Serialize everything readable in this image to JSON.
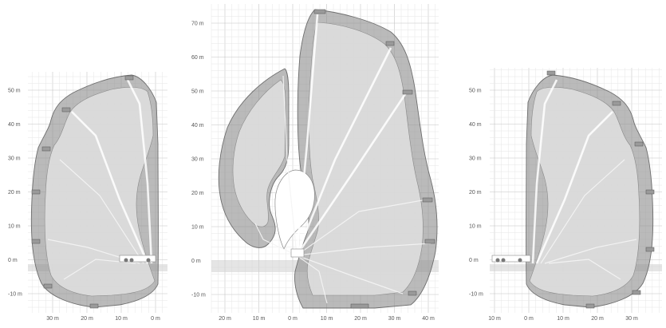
{
  "colors": {
    "outer_envelope": "#8f8f8f",
    "inner_envelope": "#dcdcdc",
    "grid": "#c4c4c4",
    "background": "#ffffff"
  },
  "panels": [
    {
      "id": "left",
      "y_ticks": [
        "50 m",
        "40 m",
        "30 m",
        "20 m",
        "10 m",
        "0 m",
        "-10 m"
      ],
      "x_ticks": [
        "30 m",
        "20 m",
        "10 m",
        "0 m"
      ]
    },
    {
      "id": "center",
      "y_ticks": [
        "70 m",
        "60 m",
        "50 m",
        "40 m",
        "30 m",
        "20 m",
        "10 m",
        "0 m",
        "-10 m"
      ],
      "x_ticks": [
        "20 m",
        "10 m",
        "0 m",
        "10 m",
        "20 m",
        "30 m",
        "40 m"
      ]
    },
    {
      "id": "right",
      "y_ticks": [
        "50 m",
        "40 m",
        "30 m",
        "20 m",
        "10 m",
        "0 m",
        "-10 m"
      ],
      "x_ticks": [
        "10 m",
        "0 m",
        "10 m",
        "20 m",
        "30 m"
      ]
    }
  ]
}
